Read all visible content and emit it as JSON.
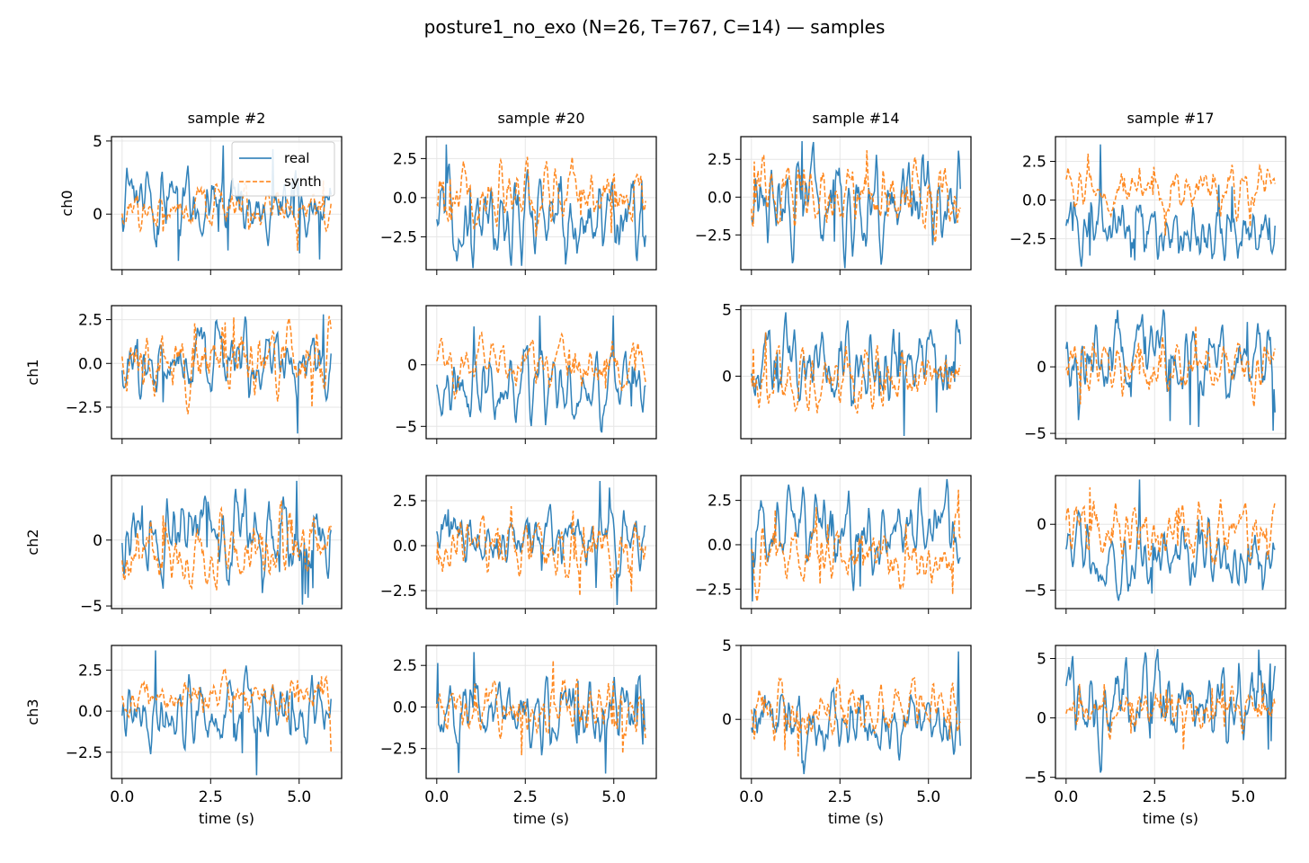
{
  "figure": {
    "title": "posture1_no_exo (N=26, T=767, C=14) — samples"
  },
  "chart_data": {
    "type": "line",
    "layout": "4 rows (channels) x 4 columns (samples)",
    "columns": [
      "sample #2",
      "sample #20",
      "sample #14",
      "sample #17"
    ],
    "rows": [
      "ch0",
      "ch1",
      "ch2",
      "ch3"
    ],
    "xlabel": "time (s)",
    "xlim": [
      -0.3,
      6.2
    ],
    "xticks": [
      0.0,
      2.5,
      5.0
    ],
    "xtick_labels": [
      "0.0",
      "2.5",
      "5.0"
    ],
    "grid": true,
    "legend": {
      "placement": "upper right",
      "panel": "ch0 / sample #2",
      "entries": [
        "real",
        "synth"
      ]
    },
    "series_styles": [
      {
        "name": "real",
        "color": "#1f77b4",
        "dash": "solid"
      },
      {
        "name": "synth",
        "color": "#ff7f0e",
        "dash": "dashed"
      }
    ],
    "panels": [
      {
        "row": 0,
        "col": 0,
        "ylim": [
          -3.8,
          5.3
        ],
        "yticks": [
          0,
          5
        ],
        "ytick_labels": [
          "0",
          "5"
        ],
        "real_range": [
          -3.2,
          4.7
        ],
        "synth_range": [
          -2.5,
          2.3
        ],
        "seed": 11
      },
      {
        "row": 0,
        "col": 1,
        "ylim": [
          -4.6,
          3.9
        ],
        "yticks": [
          -2.5,
          0,
          2.5
        ],
        "ytick_labels": [
          "−2.5",
          "0.0",
          "2.5"
        ],
        "real_range": [
          -4.5,
          3.4
        ],
        "synth_range": [
          -2.5,
          2.6
        ],
        "seed": 12
      },
      {
        "row": 0,
        "col": 2,
        "ylim": [
          -4.8,
          4.0
        ],
        "yticks": [
          -2.5,
          0,
          2.5
        ],
        "ytick_labels": [
          "−2.5",
          "0.0",
          "2.5"
        ],
        "real_range": [
          -4.7,
          3.7
        ],
        "synth_range": [
          -3.0,
          3.1
        ],
        "seed": 13
      },
      {
        "row": 0,
        "col": 3,
        "ylim": [
          -4.5,
          4.1
        ],
        "yticks": [
          -2.5,
          0,
          2.5
        ],
        "ytick_labels": [
          "−2.5",
          "0.0",
          "2.5"
        ],
        "real_range": [
          -4.3,
          3.6
        ],
        "synth_range": [
          -2.3,
          3.0
        ],
        "seed": 14
      },
      {
        "row": 1,
        "col": 0,
        "ylim": [
          -4.3,
          3.3
        ],
        "yticks": [
          -2.5,
          0,
          2.5
        ],
        "ytick_labels": [
          "−2.5",
          "0.0",
          "2.5"
        ],
        "real_range": [
          -4.0,
          2.8
        ],
        "synth_range": [
          -2.9,
          2.7
        ],
        "seed": 21
      },
      {
        "row": 1,
        "col": 1,
        "ylim": [
          -6.0,
          4.8
        ],
        "yticks": [
          -5,
          0
        ],
        "ytick_labels": [
          "−5",
          "0"
        ],
        "real_range": [
          -5.5,
          4.0
        ],
        "synth_range": [
          -2.8,
          2.6
        ],
        "seed": 22
      },
      {
        "row": 1,
        "col": 2,
        "ylim": [
          -4.7,
          5.3
        ],
        "yticks": [
          0,
          5
        ],
        "ytick_labels": [
          "0",
          "5"
        ],
        "real_range": [
          -4.5,
          4.8
        ],
        "synth_range": [
          -2.8,
          3.3
        ],
        "seed": 23
      },
      {
        "row": 1,
        "col": 3,
        "ylim": [
          -5.4,
          4.6
        ],
        "yticks": [
          -5,
          0
        ],
        "ytick_labels": [
          "−5",
          "0"
        ],
        "real_range": [
          -4.8,
          4.3
        ],
        "synth_range": [
          -3.0,
          3.1
        ],
        "seed": 24
      },
      {
        "row": 2,
        "col": 0,
        "ylim": [
          -5.2,
          4.9
        ],
        "yticks": [
          -5,
          0
        ],
        "ytick_labels": [
          "−5",
          "0"
        ],
        "real_range": [
          -4.9,
          4.5
        ],
        "synth_range": [
          -3.8,
          2.9
        ],
        "seed": 31
      },
      {
        "row": 2,
        "col": 1,
        "ylim": [
          -3.5,
          3.9
        ],
        "yticks": [
          -2.5,
          0,
          2.5
        ],
        "ytick_labels": [
          "−2.5",
          "0.0",
          "2.5"
        ],
        "real_range": [
          -3.3,
          3.6
        ],
        "synth_range": [
          -2.8,
          2.2
        ],
        "seed": 32
      },
      {
        "row": 2,
        "col": 2,
        "ylim": [
          -3.6,
          3.9
        ],
        "yticks": [
          -2.5,
          0,
          2.5
        ],
        "ytick_labels": [
          "−2.5",
          "0.0",
          "2.5"
        ],
        "real_range": [
          -3.2,
          3.7
        ],
        "synth_range": [
          -3.2,
          3.1
        ],
        "seed": 33
      },
      {
        "row": 2,
        "col": 3,
        "ylim": [
          -6.4,
          3.7
        ],
        "yticks": [
          -5,
          0
        ],
        "ytick_labels": [
          "−5",
          "0"
        ],
        "real_range": [
          -5.8,
          3.4
        ],
        "synth_range": [
          -3.0,
          2.8
        ],
        "seed": 34
      },
      {
        "row": 3,
        "col": 0,
        "ylim": [
          -4.1,
          4.0
        ],
        "yticks": [
          -2.5,
          0,
          2.5
        ],
        "ytick_labels": [
          "−2.5",
          "0.0",
          "2.5"
        ],
        "real_range": [
          -3.9,
          3.7
        ],
        "synth_range": [
          -2.5,
          2.6
        ],
        "seed": 41
      },
      {
        "row": 3,
        "col": 1,
        "ylim": [
          -4.3,
          3.7
        ],
        "yticks": [
          -2.5,
          0,
          2.5
        ],
        "ytick_labels": [
          "−2.5",
          "0.0",
          "2.5"
        ],
        "real_range": [
          -4.0,
          3.3
        ],
        "synth_range": [
          -2.9,
          2.8
        ],
        "seed": 42
      },
      {
        "row": 3,
        "col": 2,
        "ylim": [
          -4.0,
          5.0
        ],
        "yticks": [
          0,
          5
        ],
        "ytick_labels": [
          "0",
          "5"
        ],
        "real_range": [
          -3.7,
          4.6
        ],
        "synth_range": [
          -2.5,
          2.8
        ],
        "seed": 43
      },
      {
        "row": 3,
        "col": 3,
        "ylim": [
          -5.1,
          6.1
        ],
        "yticks": [
          -5,
          0,
          5
        ],
        "ytick_labels": [
          "−5",
          "0",
          "5"
        ],
        "real_range": [
          -4.6,
          5.8
        ],
        "synth_range": [
          -2.7,
          3.0
        ],
        "seed": 44
      }
    ]
  }
}
